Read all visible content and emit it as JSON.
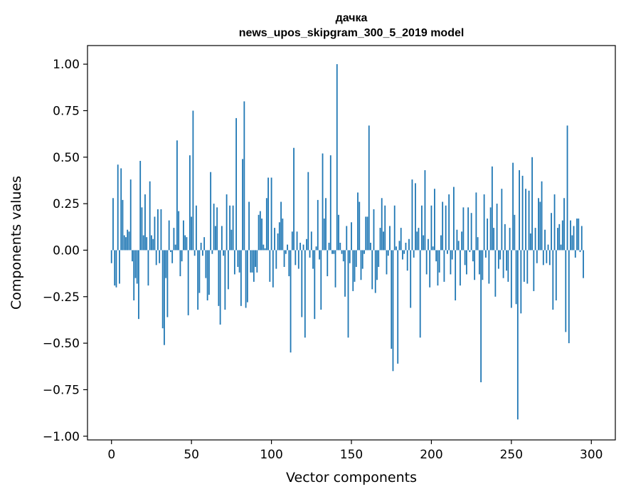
{
  "chart_data": {
    "type": "bar",
    "title_line1": "дачка",
    "title_line2": "news_upos_skipgram_300_5_2019 model",
    "xlabel": "Vector components",
    "ylabel": "Components values",
    "xlim": [
      -15,
      315
    ],
    "ylim": [
      -1.02,
      1.1
    ],
    "x_ticks": [
      0,
      50,
      100,
      150,
      200,
      250,
      300
    ],
    "x_tick_labels": [
      "0",
      "50",
      "100",
      "150",
      "200",
      "250",
      "300"
    ],
    "y_ticks": [
      1.0,
      0.75,
      0.5,
      0.25,
      0.0,
      -0.25,
      -0.5,
      -0.75,
      -1.0
    ],
    "y_tick_labels": [
      "1.00",
      "0.75",
      "0.50",
      "0.25",
      "0.00",
      "−0.25",
      "−0.50",
      "−0.75",
      "−1.00"
    ],
    "bar_color": "#1f77b4",
    "values": [
      -0.07,
      0.28,
      -0.19,
      -0.2,
      0.46,
      -0.18,
      0.44,
      0.27,
      0.08,
      0.07,
      0.11,
      0.1,
      0.38,
      -0.06,
      -0.27,
      -0.15,
      -0.18,
      -0.37,
      0.48,
      0.23,
      0.08,
      0.3,
      0.07,
      -0.19,
      0.37,
      0.08,
      0.06,
      0.18,
      -0.08,
      0.22,
      -0.07,
      0.22,
      -0.42,
      -0.51,
      -0.15,
      -0.36,
      0.16,
      -0.01,
      -0.07,
      0.12,
      0.03,
      0.59,
      0.21,
      -0.14,
      -0.06,
      0.16,
      0.08,
      0.07,
      -0.35,
      0.51,
      0.18,
      0.75,
      -0.03,
      0.24,
      -0.32,
      -0.23,
      0.04,
      -0.03,
      0.07,
      -0.15,
      -0.27,
      -0.24,
      0.42,
      -0.02,
      0.25,
      0.13,
      0.23,
      -0.3,
      -0.4,
      0.13,
      -0.03,
      -0.32,
      0.3,
      -0.21,
      0.24,
      0.11,
      0.24,
      -0.13,
      0.71,
      -0.09,
      -0.12,
      -0.3,
      0.49,
      0.8,
      -0.31,
      -0.28,
      0.26,
      -0.12,
      -0.12,
      -0.17,
      -0.09,
      -0.12,
      0.19,
      0.21,
      0.17,
      0.03,
      0.01,
      0.28,
      0.39,
      -0.17,
      0.39,
      -0.2,
      0.12,
      -0.1,
      0.09,
      0.15,
      0.26,
      0.17,
      -0.09,
      -0.02,
      0.03,
      -0.14,
      -0.55,
      0.1,
      0.55,
      -0.08,
      0.1,
      -0.1,
      0.04,
      -0.36,
      0.03,
      -0.47,
      0.06,
      0.42,
      -0.04,
      0.1,
      -0.1,
      -0.37,
      0.02,
      0.27,
      -0.05,
      -0.32,
      0.52,
      0.17,
      0.28,
      -0.14,
      0.04,
      0.51,
      -0.02,
      -0.02,
      -0.2,
      1.0,
      0.19,
      0.04,
      -0.02,
      -0.06,
      -0.25,
      0.13,
      -0.47,
      -0.07,
      0.15,
      -0.22,
      -0.17,
      -0.09,
      0.31,
      0.26,
      -0.16,
      -0.1,
      -0.02,
      0.18,
      0.18,
      0.67,
      0.04,
      -0.21,
      0.22,
      -0.23,
      -0.16,
      -0.09,
      0.12,
      0.28,
      0.1,
      0.24,
      -0.13,
      -0.03,
      0.13,
      -0.53,
      -0.65,
      0.24,
      0.02,
      -0.61,
      0.05,
      0.12,
      -0.05,
      -0.02,
      0.04,
      -0.11,
      0.06,
      -0.31,
      0.38,
      -0.04,
      0.36,
      0.1,
      0.12,
      -0.47,
      0.24,
      0.08,
      0.43,
      -0.13,
      0.06,
      -0.2,
      0.24,
      0.02,
      0.33,
      -0.06,
      -0.19,
      -0.12,
      0.08,
      0.26,
      -0.17,
      0.24,
      -0.02,
      0.3,
      -0.13,
      -0.05,
      0.34,
      -0.27,
      0.11,
      0.05,
      -0.19,
      0.1,
      0.23,
      -0.08,
      -0.13,
      0.23,
      -0.01,
      0.2,
      -0.06,
      -0.16,
      0.31,
      0.07,
      -0.13,
      -0.71,
      -0.16,
      0.3,
      -0.04,
      0.17,
      -0.18,
      0.23,
      0.45,
      0.12,
      -0.25,
      0.25,
      -0.1,
      -0.05,
      0.33,
      -0.15,
      0.14,
      -0.11,
      -0.17,
      0.12,
      -0.31,
      0.47,
      0.19,
      -0.29,
      -0.91,
      0.43,
      -0.34,
      0.4,
      -0.17,
      0.33,
      -0.18,
      0.32,
      0.09,
      0.5,
      -0.22,
      0.12,
      -0.07,
      0.28,
      0.26,
      0.37,
      -0.08,
      0.11,
      -0.07,
      0.03,
      -0.08,
      0.2,
      -0.32,
      0.3,
      -0.27,
      0.12,
      0.14,
      0.03,
      0.16,
      0.28,
      -0.44,
      0.67,
      -0.5,
      0.16,
      0.08,
      0.13,
      -0.04,
      0.17,
      0.17,
      -0.01,
      0.13,
      -0.15
    ]
  }
}
